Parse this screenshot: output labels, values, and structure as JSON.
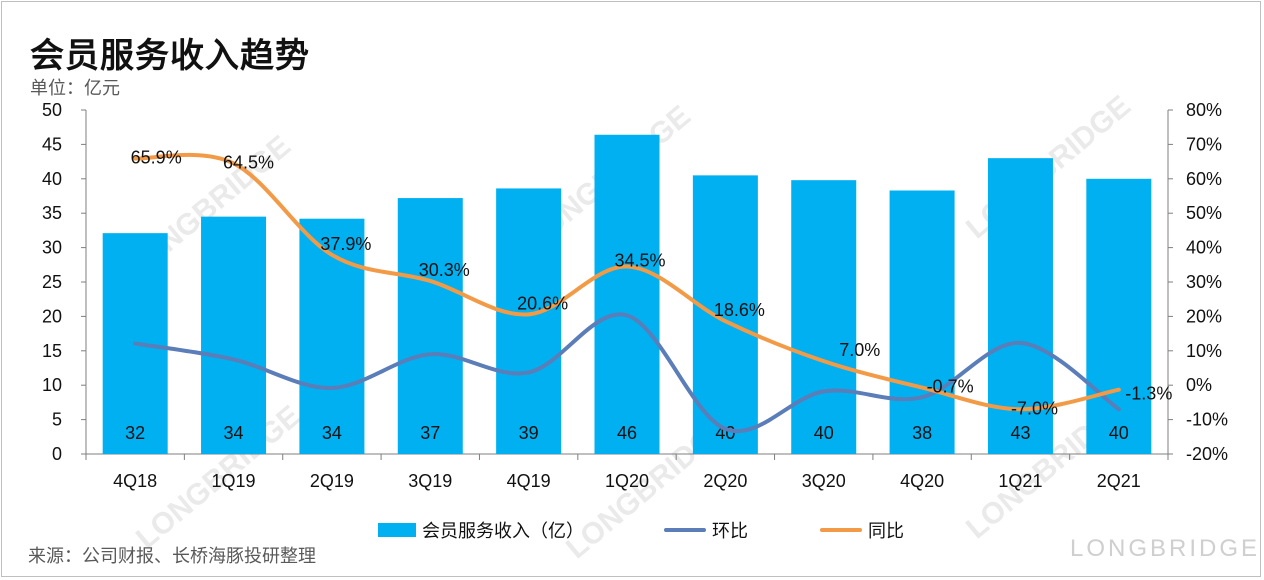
{
  "title": "会员服务收入趋势",
  "unit": "单位：亿元",
  "source": "来源：公司财报、长桥海豚投研整理",
  "watermark": "LONGBRIDGE",
  "colors": {
    "bar": "#00b0f0",
    "qoq": "#5b7db8",
    "yoy": "#f39a47",
    "axis": "#7f7f7f"
  },
  "legend": {
    "bar": "会员服务收入（亿）",
    "qoq": "环比",
    "yoy": "同比"
  },
  "chart_data": {
    "type": "bar",
    "categories": [
      "4Q18",
      "1Q19",
      "2Q19",
      "3Q19",
      "4Q19",
      "1Q20",
      "2Q20",
      "3Q20",
      "4Q20",
      "1Q21",
      "2Q21"
    ],
    "series": [
      {
        "name": "会员服务收入（亿）",
        "type": "bar",
        "axis": "left",
        "values": [
          32.1,
          34.5,
          34.2,
          37.2,
          38.6,
          46.4,
          40.5,
          39.8,
          38.3,
          43.0,
          40.0
        ],
        "labels": [
          "32",
          "34",
          "34",
          "37",
          "39",
          "46",
          "40",
          "40",
          "38",
          "43",
          "40"
        ]
      },
      {
        "name": "环比",
        "type": "line",
        "axis": "right",
        "values": [
          12.1,
          7.5,
          -0.8,
          9.0,
          3.7,
          20.3,
          -12.7,
          -1.8,
          -3.5,
          12.3,
          -7.0
        ]
      },
      {
        "name": "同比",
        "type": "line",
        "axis": "right",
        "values": [
          65.9,
          64.5,
          37.9,
          30.3,
          20.6,
          34.5,
          18.6,
          7.0,
          -0.7,
          -7.0,
          -1.3
        ],
        "labels": [
          "65.9%",
          "64.5%",
          "37.9%",
          "30.3%",
          "20.6%",
          "34.5%",
          "18.6%",
          "7.0%",
          "-0.7%",
          "-7.0%",
          "-1.3%"
        ]
      }
    ],
    "ylim_left": [
      0,
      50
    ],
    "yticks_left": [
      "0",
      "5",
      "10",
      "15",
      "20",
      "25",
      "30",
      "35",
      "40",
      "45",
      "50"
    ],
    "ylim_right": [
      -20,
      80
    ],
    "yticks_right": [
      "-20%",
      "-10%",
      "0%",
      "10%",
      "20%",
      "30%",
      "40%",
      "50%",
      "60%",
      "70%",
      "80%"
    ],
    "grid": false,
    "legend_position": "bottom"
  }
}
